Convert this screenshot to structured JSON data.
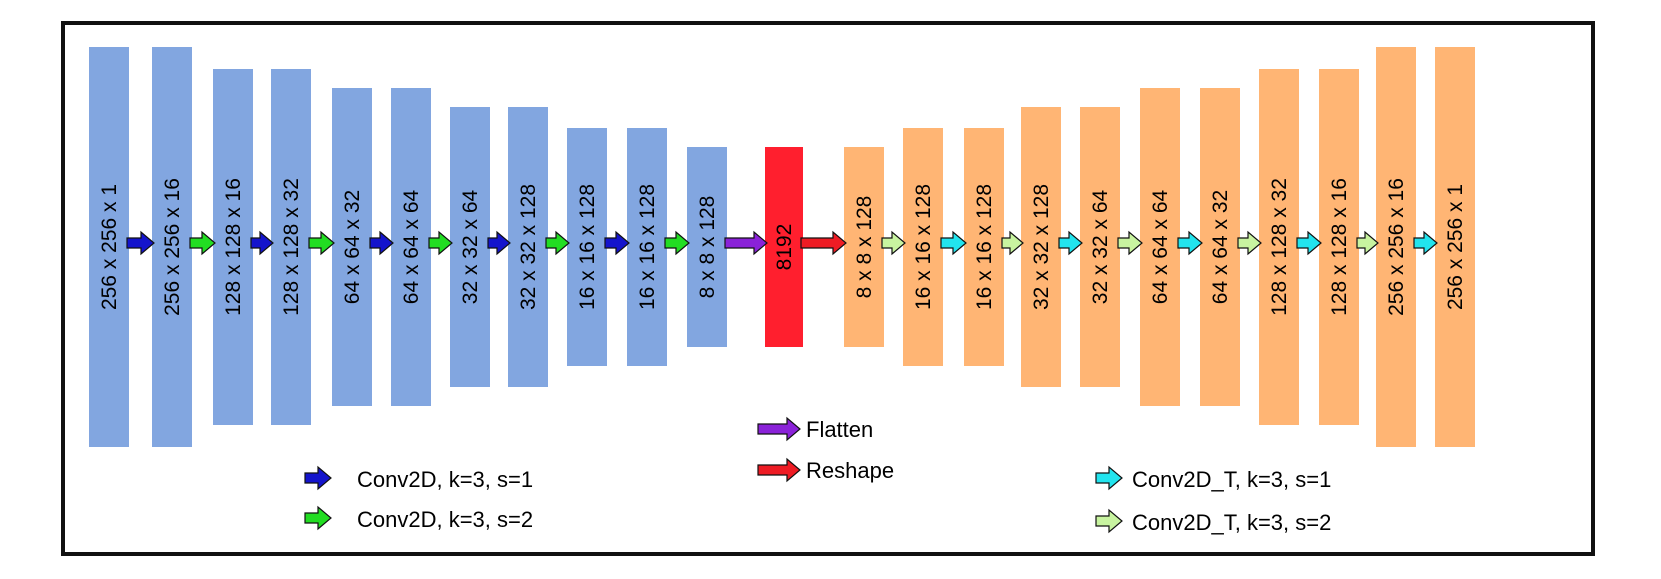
{
  "colors": {
    "encoder": "#82a6e0",
    "bottleneck": "#ff1f2e",
    "decoder": "#ffb574",
    "conv_s1": "#1414cc",
    "conv_s2": "#22dd22",
    "flatten": "#8a22d8",
    "reshape": "#ee1c24",
    "convT_s1": "#22e4ee",
    "convT_s2": "#c8f4a0"
  },
  "layers": [
    {
      "label": "256 x 256 x 1",
      "kind": "encoder",
      "height": 8
    },
    {
      "label": "256 x 256 x 16",
      "kind": "encoder",
      "height": 8
    },
    {
      "label": "128 x 128 x 16",
      "kind": "encoder",
      "height": 7
    },
    {
      "label": "128 x 128 x 32",
      "kind": "encoder",
      "height": 7
    },
    {
      "label": "64 x 64 x 32",
      "kind": "encoder",
      "height": 6
    },
    {
      "label": "64 x 64 x 64",
      "kind": "encoder",
      "height": 6
    },
    {
      "label": "32 x 32 x 64",
      "kind": "encoder",
      "height": 5
    },
    {
      "label": "32 x 32 x 128",
      "kind": "encoder",
      "height": 5
    },
    {
      "label": "16 x 16 x 128",
      "kind": "encoder",
      "height": 4
    },
    {
      "label": "16 x 16 x 128",
      "kind": "encoder",
      "height": 4
    },
    {
      "label": "8 x 8 x 128",
      "kind": "encoder",
      "height": 3
    },
    {
      "label": "8192",
      "kind": "bottleneck",
      "height": 3
    },
    {
      "label": "8 x 8 x 128",
      "kind": "decoder",
      "height": 3
    },
    {
      "label": "16 x 16 x 128",
      "kind": "decoder",
      "height": 4
    },
    {
      "label": "16 x 16 x 128",
      "kind": "decoder",
      "height": 4
    },
    {
      "label": "32 x 32 x 128",
      "kind": "decoder",
      "height": 5
    },
    {
      "label": "32 x 32 x 64",
      "kind": "decoder",
      "height": 5
    },
    {
      "label": "64 x 64 x 64",
      "kind": "decoder",
      "height": 6
    },
    {
      "label": "64 x 64 x 32",
      "kind": "decoder",
      "height": 6
    },
    {
      "label": "128 x 128 x 32",
      "kind": "decoder",
      "height": 7
    },
    {
      "label": "128 x 128 x 16",
      "kind": "decoder",
      "height": 7
    },
    {
      "label": "256 x 256 x 16",
      "kind": "decoder",
      "height": 8
    },
    {
      "label": "256 x 256 x 1",
      "kind": "decoder",
      "height": 8
    }
  ],
  "connections": [
    "conv_s1",
    "conv_s2",
    "conv_s1",
    "conv_s2",
    "conv_s1",
    "conv_s2",
    "conv_s1",
    "conv_s2",
    "conv_s1",
    "conv_s2",
    "flatten",
    "reshape",
    "convT_s2",
    "convT_s1",
    "convT_s2",
    "convT_s1",
    "convT_s2",
    "convT_s1",
    "convT_s2",
    "convT_s1",
    "convT_s2",
    "convT_s1"
  ],
  "legend": {
    "conv_s1": "Conv2D, k=3, s=1",
    "conv_s2": "Conv2D, k=3, s=2",
    "flatten": "Flatten",
    "reshape": "Reshape",
    "convT_s1": "Conv2D_T, k=3, s=1",
    "convT_s2": "Conv2D_T, k=3, s=2"
  }
}
